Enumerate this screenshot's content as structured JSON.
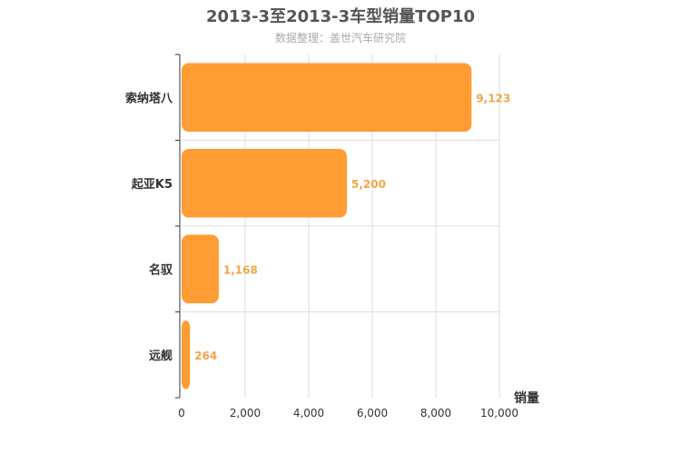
{
  "chart_data": {
    "type": "bar",
    "orientation": "horizontal",
    "title": "2013-3至2013-3车型销量TOP10",
    "subtitle": "数据整理：盖世汽车研究院",
    "categories": [
      "索纳塔八",
      "起亚K5",
      "名驭",
      "远舰"
    ],
    "values": [
      9123,
      5200,
      1168,
      264
    ],
    "value_labels": [
      "9,123",
      "5,200",
      "1,168",
      "264"
    ],
    "xlabel": "销量",
    "xlim": [
      0,
      10000
    ],
    "xticks": [
      0,
      2000,
      4000,
      6000,
      8000,
      10000
    ],
    "xtick_labels": [
      "0",
      "2,000",
      "4,000",
      "6,000",
      "8,000",
      "10,000"
    ],
    "grid": true,
    "bar_color": "#ff9c33",
    "label_color": "#f0a64a"
  }
}
